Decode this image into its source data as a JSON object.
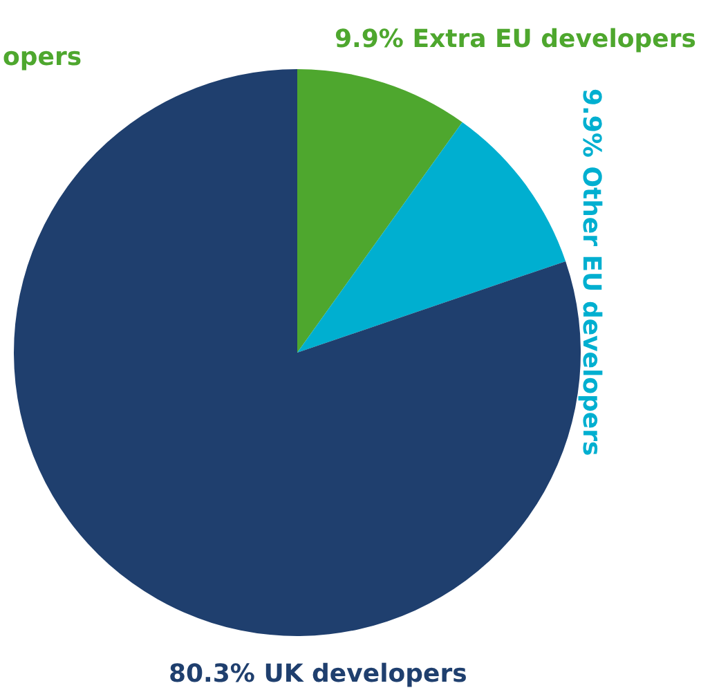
{
  "chart_data": {
    "type": "pie",
    "categories": [
      "9.9% Extra EU developers",
      "9.9% Other EU developers",
      "80.3% UK developers"
    ],
    "values": [
      9.9,
      9.9,
      80.3
    ],
    "colors": [
      "#4ea72e",
      "#00afd0",
      "#1f3f6e"
    ],
    "annotations": [
      {
        "text": "opers"
      }
    ],
    "legend": false
  }
}
